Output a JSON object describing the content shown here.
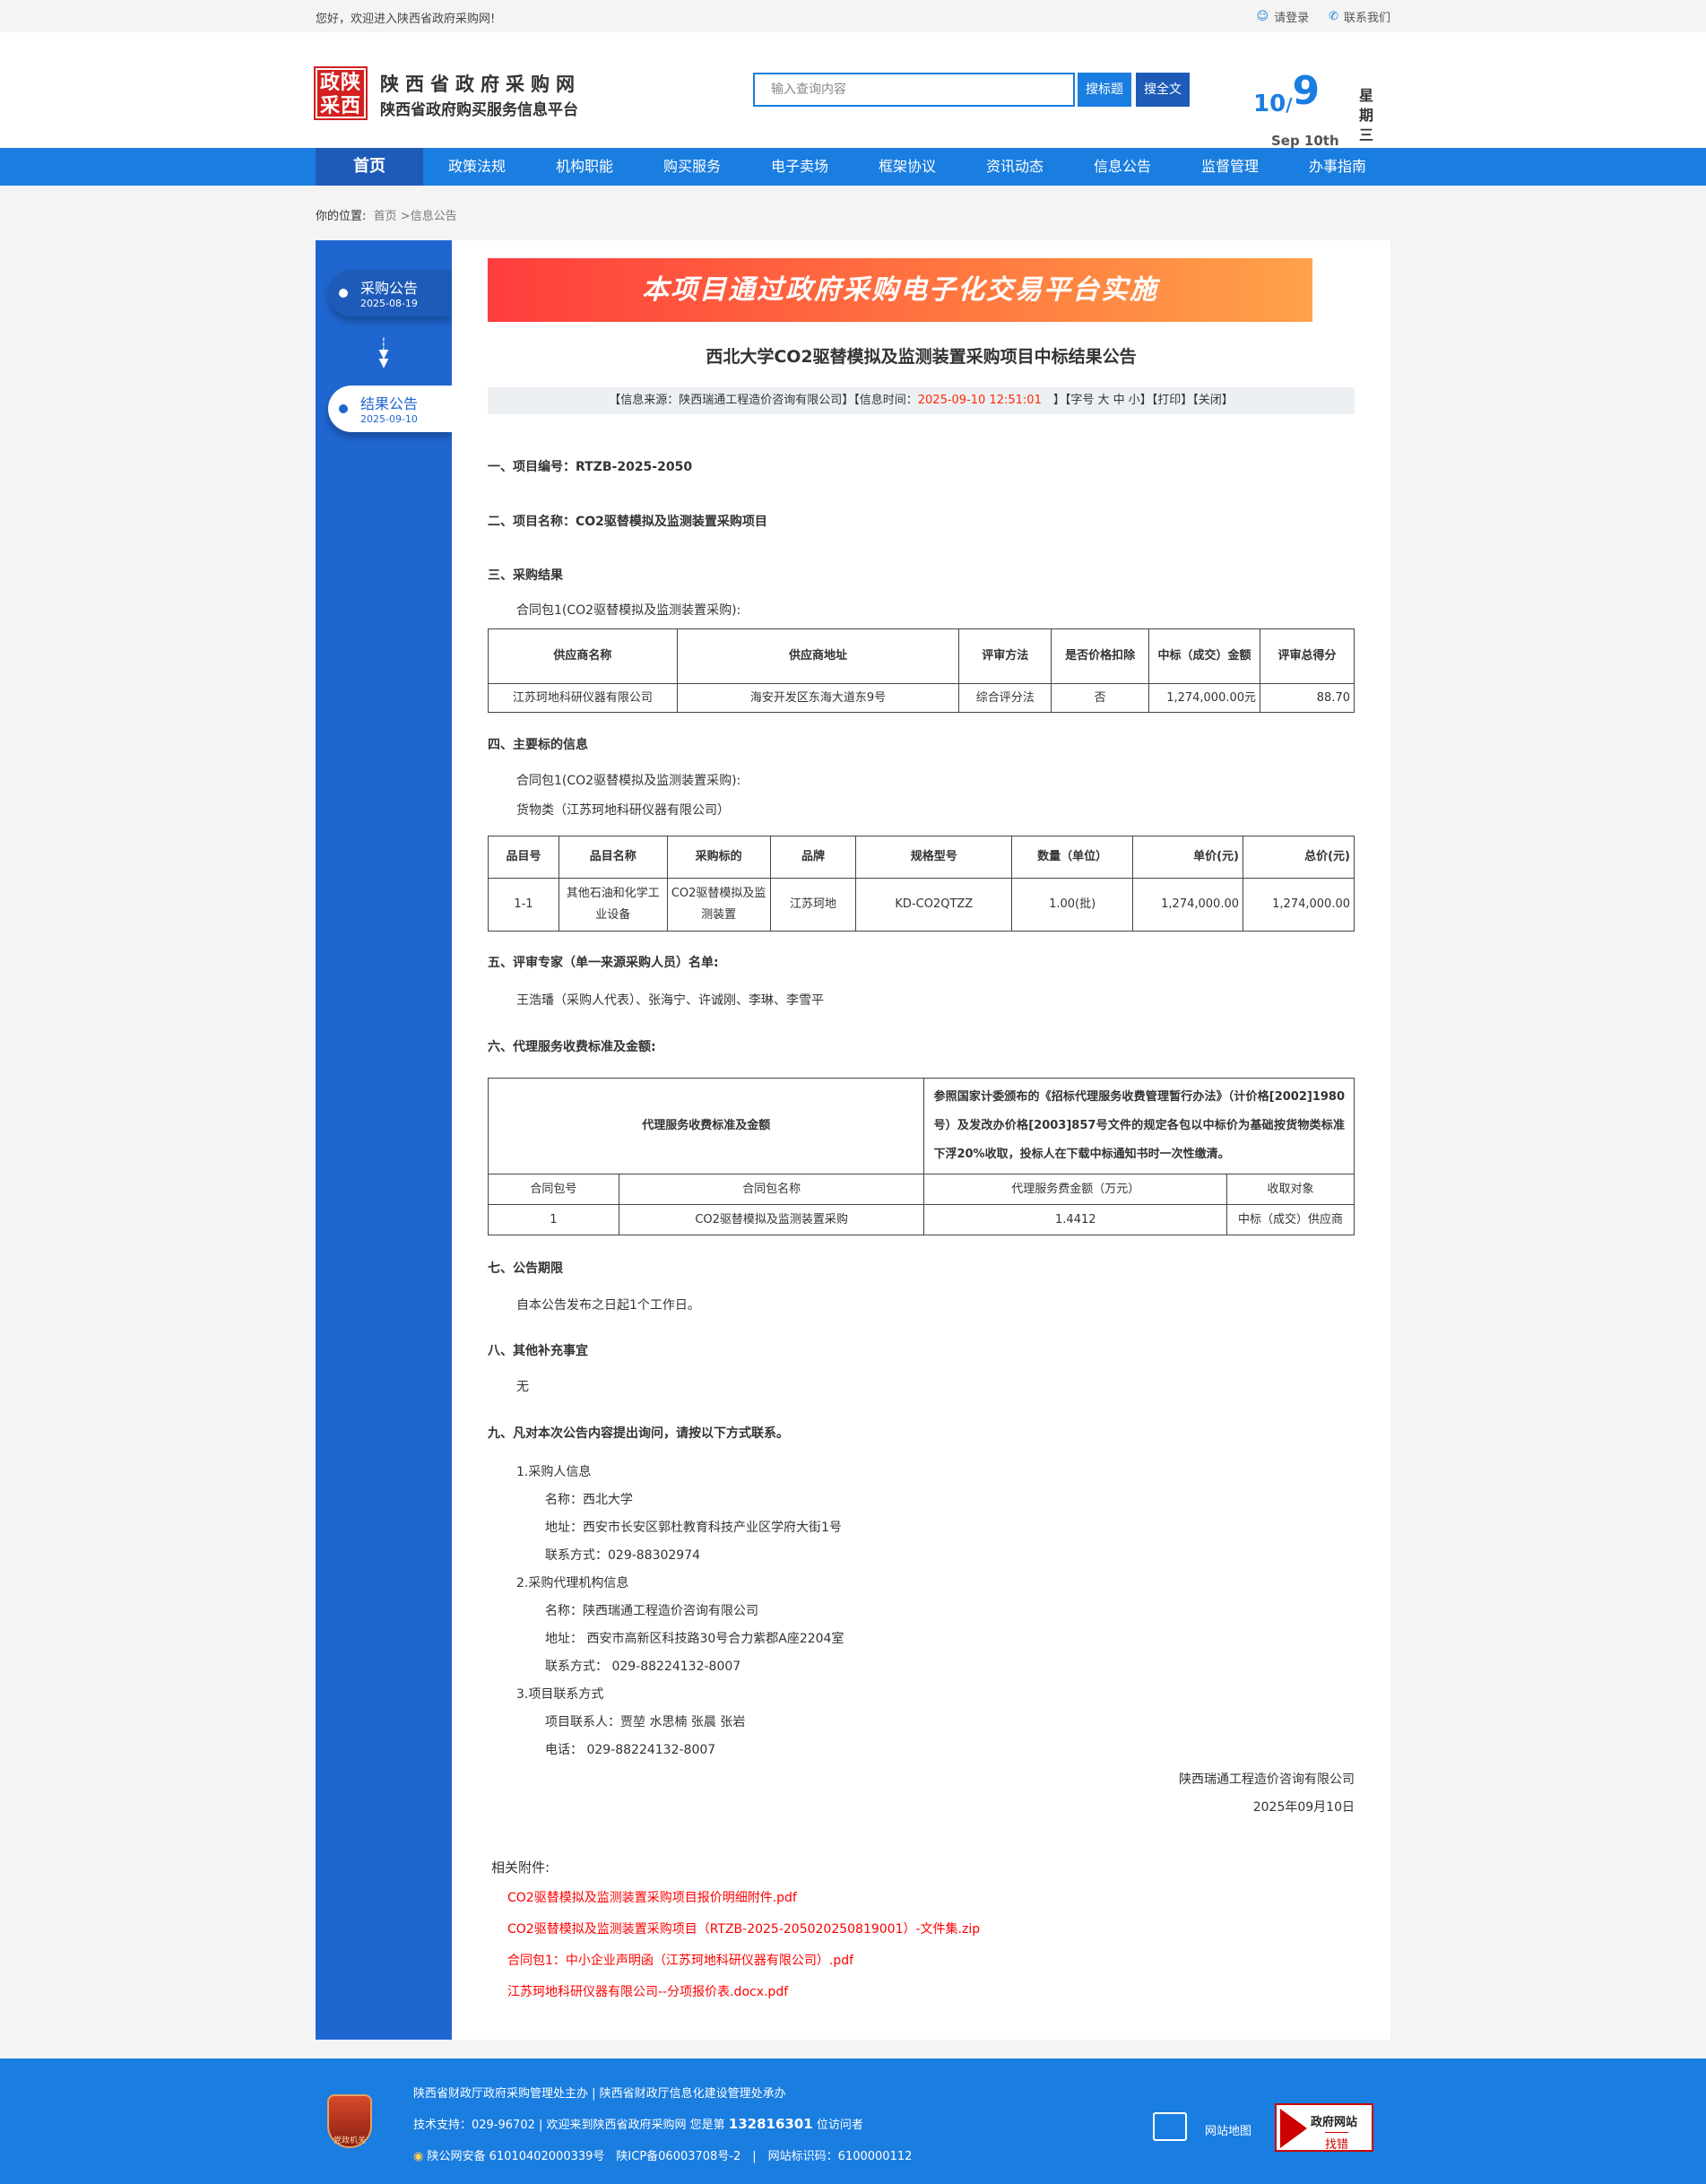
{
  "topbar": {
    "greeting": "您好，欢迎进入陕西省政府采购网!",
    "login": "请登录",
    "contact": "联系我们"
  },
  "header": {
    "logo_text": "政陕采西",
    "title": "陕西省政府采购网",
    "subtitle": "陕西省政府购买服务信息平台",
    "search_placeholder": "输入查询内容",
    "search_title_btn": "搜标题",
    "search_full_btn": "搜全文",
    "date_month": "10",
    "date_sep": "/",
    "date_day": "9",
    "date_en": "Sep 10th",
    "weekday": "星期三"
  },
  "nav": [
    "首页",
    "政策法规",
    "机构职能",
    "购买服务",
    "电子卖场",
    "框架协议",
    "资讯动态",
    "信息公告",
    "监督管理",
    "办事指南"
  ],
  "breadcrumb": {
    "label": "你的位置:",
    "home": "首页",
    "sep": " >",
    "current": "信息公告"
  },
  "sidebar": [
    {
      "label": "采购公告",
      "date": "2025-08-19"
    },
    {
      "label": "结果公告",
      "date": "2025-09-10",
      "active": true
    }
  ],
  "article": {
    "banner": "本项目通过政府采购电子化交易平台实施",
    "title": "西北大学CO2驱替模拟及监测装置采购项目中标结果公告",
    "meta": {
      "source": "【信息来源：陕西瑞通工程造价咨询有限公司】【信息时间：",
      "time": "2025-09-10 12:51:01",
      "tail": "　】【字号 大 中 小】【打印】【关闭】"
    },
    "s1": "一、项目编号：RTZB-2025-2050",
    "s2": "二、项目名称：CO2驱替模拟及监测装置采购项目",
    "s3": "三、采购结果",
    "s3_pkg": "合同包1(CO2驱替模拟及监测装置采购):",
    "t1_head": [
      "供应商名称",
      "供应商地址",
      "评审方法",
      "是否价格扣除",
      "中标（成交）金额",
      "评审总得分"
    ],
    "t1_row": [
      "江苏珂地科研仪器有限公司",
      "海安开发区东海大道东9号",
      "综合评分法",
      "否",
      "1,274,000.00元",
      "88.70"
    ],
    "s4": "四、主要标的信息",
    "s4_pkg": "合同包1(CO2驱替模拟及监测装置采购):",
    "s4_cat": "货物类（江苏珂地科研仪器有限公司）",
    "t2_head": [
      "品目号",
      "品目名称",
      "采购标的",
      "品牌",
      "规格型号",
      "数量（单位）",
      "单价(元)",
      "总价(元)"
    ],
    "t2_row": [
      "1-1",
      "其他石油和化学工业设备",
      "CO2驱替模拟及监测装置",
      "江苏珂地",
      "KD-CO2QTZZ",
      "1.00(批)",
      "1,274,000.00",
      "1,274,000.00"
    ],
    "s5": "五、评审专家（单一来源采购人员）名单:",
    "s5_body": "王浩璠（采购人代表）、张海宁、许诚刚、李琳、李雪平",
    "s6": "六、代理服务收费标准及金额:",
    "t3_top": [
      "代理服务收费标准及金额",
      "参照国家计委颁布的《招标代理服务收费管理暂行办法》（计价格[2002]1980号）及发改办价格[2003]857号文件的规定各包以中标价为基础按货物类标准下浮20%收取，投标人在下载中标通知书时一次性缴清。"
    ],
    "t3_head": [
      "合同包号",
      "合同包名称",
      "代理服务费金额（万元）",
      "收取对象"
    ],
    "t3_row": [
      "1",
      "CO2驱替模拟及监测装置采购",
      "1.4412",
      "中标（成交）供应商"
    ],
    "s7": "七、公告期限",
    "s7_body": "自本公告发布之日起1个工作日。",
    "s8": "八、其他补充事宜",
    "s8_body": "无",
    "s9": "九、凡对本次公告内容提出询问，请按以下方式联系。",
    "contacts": {
      "c1": "1.采购人信息",
      "c1_name": "名称：西北大学",
      "c1_addr": "地址：西安市长安区郭杜教育科技产业区学府大街1号",
      "c1_tel": "联系方式：029-88302974",
      "c2": "2.采购代理机构信息",
      "c2_name": "名称：陕西瑞通工程造价咨询有限公司",
      "c2_addr": "地址： 西安市高新区科技路30号合力紫郡A座2204室",
      "c2_tel": "联系方式： 029-88224132-8007",
      "c3": "3.项目联系方式",
      "c3_person": "项目联系人：贾堃 水思楠 张晨 张岩",
      "c3_tel": "电话： 029-88224132-8007"
    },
    "sign_org": "陕西瑞通工程造价咨询有限公司",
    "sign_date": "2025年09月10日",
    "attachments_title": "相关附件:",
    "attachments": [
      "CO2驱替模拟及监测装置采购项目报价明细附件.pdf",
      "CO2驱替模拟及监测装置采购项目（RTZB-2025-205020250819001）-文件集.zip",
      "合同包1：中小企业声明函（江苏珂地科研仪器有限公司）.pdf",
      "江苏珂地科研仪器有限公司--分项报价表.docx.pdf"
    ]
  },
  "footer": {
    "emblem_text": "党政机关",
    "line1": "陕西省财政厅政府采购管理处主办 | 陕西省财政厅信息化建设管理处承办",
    "line2_pre": "技术支持：029-96702 | 欢迎来到陕西省政府采购网 您是第 ",
    "visitors": "132816301",
    "line2_post": " 位访问者",
    "line3": "陕公网安备 61010402000339号　陕ICP备06003708号-2　|　网站标识码：6100000112",
    "sitemap": "网站地图",
    "findbug_top": "政府网站",
    "findbug_bottom": "找错"
  },
  "colors": {
    "primary": "#1a7de0",
    "nav_active": "#1e5bb8",
    "sidebar": "#1f66d1",
    "link_red": "#ff0000"
  }
}
